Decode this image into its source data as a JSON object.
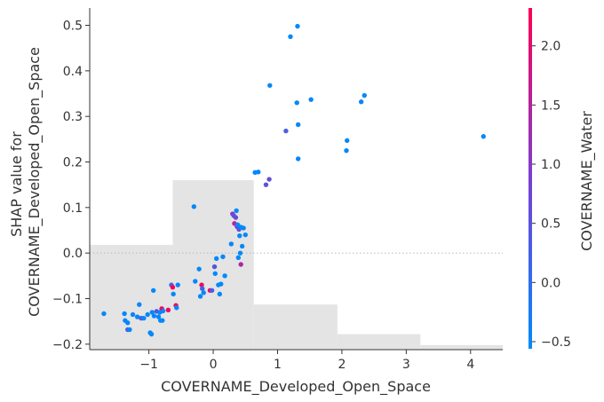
{
  "chart_data": {
    "type": "scatter",
    "title": "",
    "xlabel": "COVERNAME_Developed_Open_Space",
    "ylabel_lines": [
      "SHAP value for",
      "COVERNAME_Developed_Open_Space"
    ],
    "xlim": [
      -1.92,
      4.5
    ],
    "ylim": [
      -0.212,
      0.538
    ],
    "xticks": [
      -1,
      0,
      1,
      2,
      3,
      4
    ],
    "xtick_labels": [
      "−1",
      "0",
      "1",
      "2",
      "3",
      "4"
    ],
    "yticks": [
      -0.2,
      -0.1,
      0.0,
      0.1,
      0.2,
      0.3,
      0.4,
      0.5
    ],
    "ytick_labels": [
      "−0.2",
      "−0.1",
      "0.0",
      "0.1",
      "0.2",
      "0.3",
      "0.4",
      "0.5"
    ],
    "zero_line": true,
    "grid": false,
    "colorbar": {
      "label": "COVERNAME_Water",
      "range": [
        -0.56,
        2.32
      ],
      "ticks": [
        -0.5,
        0.0,
        0.5,
        1.0,
        1.5,
        2.0
      ],
      "tick_labels": [
        "−0.5",
        "0.0",
        "0.5",
        "1.0",
        "1.5",
        "2.0"
      ],
      "color_low": "#008bfb",
      "color_mid": "#7a3fd2",
      "color_high": "#ff0052"
    },
    "histogram_background": {
      "color": "#e4e4e4",
      "bins": [
        {
          "x0": -1.92,
          "x1": -0.63,
          "height": 0.018
        },
        {
          "x0": -0.63,
          "x1": 0.63,
          "height": 0.16
        },
        {
          "x0": 0.63,
          "x1": 1.93,
          "height": -0.113
        },
        {
          "x0": 1.93,
          "x1": 3.22,
          "height": -0.178
        },
        {
          "x0": 3.22,
          "x1": 4.5,
          "height": -0.202
        }
      ]
    },
    "points": [
      {
        "x": -1.7,
        "y": -0.133,
        "c": -0.5
      },
      {
        "x": -1.38,
        "y": -0.133,
        "c": -0.5
      },
      {
        "x": -1.37,
        "y": -0.148,
        "c": -0.5
      },
      {
        "x": -1.33,
        "y": -0.153,
        "c": -0.5
      },
      {
        "x": -1.33,
        "y": -0.168,
        "c": 0.3
      },
      {
        "x": -1.3,
        "y": -0.168,
        "c": -0.5
      },
      {
        "x": -1.25,
        "y": -0.135,
        "c": -0.5
      },
      {
        "x": -1.18,
        "y": -0.14,
        "c": -0.5
      },
      {
        "x": -1.15,
        "y": -0.113,
        "c": -0.5
      },
      {
        "x": -1.12,
        "y": -0.143,
        "c": 0.3
      },
      {
        "x": -1.08,
        "y": -0.143,
        "c": -0.5
      },
      {
        "x": -1.02,
        "y": -0.135,
        "c": -0.5
      },
      {
        "x": -0.98,
        "y": -0.175,
        "c": -0.5
      },
      {
        "x": -0.96,
        "y": -0.178,
        "c": -0.5
      },
      {
        "x": -0.95,
        "y": -0.13,
        "c": -0.5
      },
      {
        "x": -0.93,
        "y": -0.082,
        "c": -0.5
      },
      {
        "x": -0.92,
        "y": -0.138,
        "c": -0.5
      },
      {
        "x": -0.88,
        "y": -0.128,
        "c": 0.4
      },
      {
        "x": -0.85,
        "y": -0.14,
        "c": -0.5
      },
      {
        "x": -0.83,
        "y": -0.13,
        "c": -0.5
      },
      {
        "x": -0.82,
        "y": -0.148,
        "c": -0.5
      },
      {
        "x": -0.8,
        "y": -0.122,
        "c": 2.2
      },
      {
        "x": -0.79,
        "y": -0.148,
        "c": -0.5
      },
      {
        "x": -0.78,
        "y": -0.127,
        "c": -0.5
      },
      {
        "x": -0.7,
        "y": -0.125,
        "c": 2.1
      },
      {
        "x": -0.65,
        "y": -0.07,
        "c": 0.2
      },
      {
        "x": -0.63,
        "y": -0.075,
        "c": 2.2
      },
      {
        "x": -0.62,
        "y": -0.09,
        "c": -0.5
      },
      {
        "x": -0.58,
        "y": -0.115,
        "c": 2.2
      },
      {
        "x": -0.57,
        "y": -0.12,
        "c": -0.5
      },
      {
        "x": -0.55,
        "y": -0.07,
        "c": -0.5
      },
      {
        "x": -0.3,
        "y": 0.102,
        "c": -0.5
      },
      {
        "x": -0.28,
        "y": -0.062,
        "c": -0.5
      },
      {
        "x": -0.22,
        "y": -0.035,
        "c": -0.5
      },
      {
        "x": -0.2,
        "y": -0.095,
        "c": -0.5
      },
      {
        "x": -0.18,
        "y": -0.07,
        "c": 2.2
      },
      {
        "x": -0.17,
        "y": -0.078,
        "c": 0.2
      },
      {
        "x": -0.15,
        "y": -0.087,
        "c": -0.5
      },
      {
        "x": -0.05,
        "y": -0.082,
        "c": 2.1
      },
      {
        "x": -0.02,
        "y": -0.082,
        "c": 0.3
      },
      {
        "x": 0.02,
        "y": -0.03,
        "c": 0.5
      },
      {
        "x": 0.03,
        "y": -0.045,
        "c": -0.5
      },
      {
        "x": 0.05,
        "y": -0.012,
        "c": -0.5
      },
      {
        "x": 0.08,
        "y": -0.07,
        "c": -0.5
      },
      {
        "x": 0.1,
        "y": -0.09,
        "c": -0.5
      },
      {
        "x": 0.12,
        "y": -0.068,
        "c": -0.5
      },
      {
        "x": 0.15,
        "y": -0.008,
        "c": -0.5
      },
      {
        "x": 0.18,
        "y": -0.05,
        "c": -0.5
      },
      {
        "x": 0.28,
        "y": 0.02,
        "c": -0.5
      },
      {
        "x": 0.3,
        "y": 0.086,
        "c": 1.1
      },
      {
        "x": 0.32,
        "y": 0.082,
        "c": 0.5
      },
      {
        "x": 0.33,
        "y": 0.065,
        "c": 1.5
      },
      {
        "x": 0.35,
        "y": 0.078,
        "c": 0.7
      },
      {
        "x": 0.36,
        "y": 0.093,
        "c": -0.5
      },
      {
        "x": 0.37,
        "y": 0.058,
        "c": 0.9
      },
      {
        "x": 0.38,
        "y": 0.062,
        "c": -0.5
      },
      {
        "x": 0.39,
        "y": -0.01,
        "c": -0.5
      },
      {
        "x": 0.4,
        "y": 0.052,
        "c": 0.6
      },
      {
        "x": 0.41,
        "y": 0.038,
        "c": -0.5
      },
      {
        "x": 0.42,
        "y": 0.0,
        "c": -0.5
      },
      {
        "x": 0.43,
        "y": 0.057,
        "c": -0.5
      },
      {
        "x": 0.43,
        "y": -0.025,
        "c": 1.4
      },
      {
        "x": 0.45,
        "y": 0.015,
        "c": -0.5
      },
      {
        "x": 0.47,
        "y": 0.055,
        "c": -0.5
      },
      {
        "x": 0.5,
        "y": 0.04,
        "c": -0.5
      },
      {
        "x": 0.65,
        "y": 0.177,
        "c": -0.5
      },
      {
        "x": 0.7,
        "y": 0.178,
        "c": -0.5
      },
      {
        "x": 0.82,
        "y": 0.15,
        "c": 0.5
      },
      {
        "x": 0.87,
        "y": 0.162,
        "c": 0.6
      },
      {
        "x": 0.88,
        "y": 0.368,
        "c": -0.5
      },
      {
        "x": 1.13,
        "y": 0.268,
        "c": 0.3
      },
      {
        "x": 1.2,
        "y": 0.475,
        "c": -0.5
      },
      {
        "x": 1.3,
        "y": 0.33,
        "c": -0.5
      },
      {
        "x": 1.31,
        "y": 0.498,
        "c": -0.5
      },
      {
        "x": 1.32,
        "y": 0.207,
        "c": -0.5
      },
      {
        "x": 1.32,
        "y": 0.282,
        "c": -0.5
      },
      {
        "x": 1.52,
        "y": 0.337,
        "c": -0.5
      },
      {
        "x": 2.07,
        "y": 0.225,
        "c": -0.5
      },
      {
        "x": 2.08,
        "y": 0.247,
        "c": -0.5
      },
      {
        "x": 2.3,
        "y": 0.332,
        "c": -0.5
      },
      {
        "x": 2.35,
        "y": 0.346,
        "c": -0.5
      },
      {
        "x": 4.2,
        "y": 0.256,
        "c": -0.5
      }
    ]
  }
}
